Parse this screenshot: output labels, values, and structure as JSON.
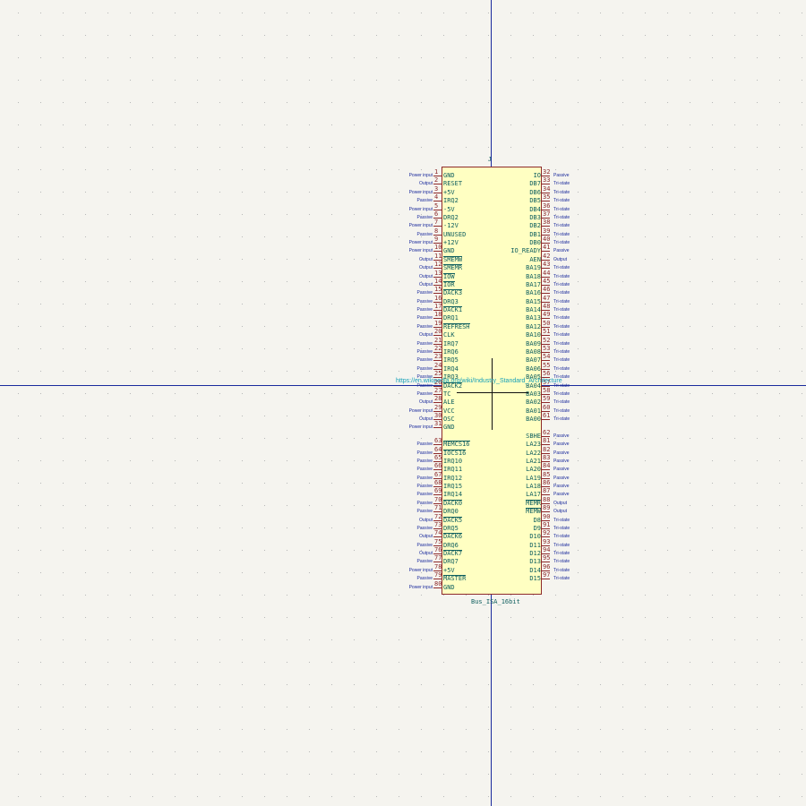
{
  "symbol": {
    "reference": "J",
    "value": "Bus_ISA_16bit",
    "datasheet": "https://en.wikipedia.org/wiki/Industry_Standard_Architecture",
    "left_pins": [
      {
        "num": "1",
        "name": "GND",
        "type": "Power input"
      },
      {
        "num": "2",
        "name": "RESET",
        "type": "Output"
      },
      {
        "num": "3",
        "name": "+5V",
        "type": "Power input"
      },
      {
        "num": "4",
        "name": "IRQ2",
        "type": "Passive"
      },
      {
        "num": "5",
        "name": "-5V",
        "type": "Power input"
      },
      {
        "num": "6",
        "name": "DRQ2",
        "type": "Passive"
      },
      {
        "num": "7",
        "name": "-12V",
        "type": "Power input"
      },
      {
        "num": "8",
        "name": "UNUSED",
        "type": "Passive"
      },
      {
        "num": "9",
        "name": "+12V",
        "type": "Power input"
      },
      {
        "num": "10",
        "name": "GND",
        "type": "Power input"
      },
      {
        "num": "11",
        "name": "SMEMW",
        "type": "Output",
        "over": true
      },
      {
        "num": "12",
        "name": "SMEMR",
        "type": "Output",
        "over": true
      },
      {
        "num": "13",
        "name": "IOW",
        "type": "Output",
        "over": true
      },
      {
        "num": "14",
        "name": "IOR",
        "type": "Output",
        "over": true
      },
      {
        "num": "15",
        "name": "DACK3",
        "type": "Passive",
        "over": true
      },
      {
        "num": "16",
        "name": "DRQ3",
        "type": "Passive"
      },
      {
        "num": "17",
        "name": "DACK1",
        "type": "Passive",
        "over": true
      },
      {
        "num": "18",
        "name": "DRQ1",
        "type": "Passive"
      },
      {
        "num": "19",
        "name": "REFRESH",
        "type": "Passive",
        "over": true
      },
      {
        "num": "20",
        "name": "CLK",
        "type": "Output"
      },
      {
        "num": "21",
        "name": "IRQ7",
        "type": "Passive"
      },
      {
        "num": "22",
        "name": "IRQ6",
        "type": "Passive"
      },
      {
        "num": "23",
        "name": "IRQ5",
        "type": "Passive"
      },
      {
        "num": "24",
        "name": "IRQ4",
        "type": "Passive"
      },
      {
        "num": "25",
        "name": "IRQ3",
        "type": "Passive"
      },
      {
        "num": "26",
        "name": "DACK2",
        "type": "Passive",
        "over": true
      },
      {
        "num": "27",
        "name": "TC",
        "type": "Passive"
      },
      {
        "num": "28",
        "name": "ALE",
        "type": "Output"
      },
      {
        "num": "29",
        "name": "VCC",
        "type": "Power input"
      },
      {
        "num": "30",
        "name": "OSC",
        "type": "Output"
      },
      {
        "num": "31",
        "name": "GND",
        "type": "Power input"
      },
      {
        "num": "63",
        "name": "MEMCS16",
        "type": "Passive",
        "over": true,
        "gap": true
      },
      {
        "num": "64",
        "name": "IOCS16",
        "type": "Passive",
        "over": true
      },
      {
        "num": "65",
        "name": "IRQ10",
        "type": "Passive"
      },
      {
        "num": "66",
        "name": "IRQ11",
        "type": "Passive"
      },
      {
        "num": "67",
        "name": "IRQ12",
        "type": "Passive"
      },
      {
        "num": "68",
        "name": "IRQ15",
        "type": "Passive"
      },
      {
        "num": "69",
        "name": "IRQ14",
        "type": "Passive"
      },
      {
        "num": "70",
        "name": "DACK0",
        "type": "Passive",
        "over": true
      },
      {
        "num": "71",
        "name": "DRQ0",
        "type": "Passive"
      },
      {
        "num": "72",
        "name": "DACK5",
        "type": "Output",
        "over": true
      },
      {
        "num": "73",
        "name": "DRQ5",
        "type": "Passive"
      },
      {
        "num": "74",
        "name": "DACK6",
        "type": "Output",
        "over": true
      },
      {
        "num": "75",
        "name": "DRQ6",
        "type": "Passive"
      },
      {
        "num": "76",
        "name": "DACK7",
        "type": "Output",
        "over": true
      },
      {
        "num": "77",
        "name": "DRQ7",
        "type": "Passive"
      },
      {
        "num": "78",
        "name": "+5V",
        "type": "Power input"
      },
      {
        "num": "79",
        "name": "MASTER",
        "type": "Passive",
        "over": true
      },
      {
        "num": "80",
        "name": "GND",
        "type": "Power input"
      }
    ],
    "right_pins": [
      {
        "num": "32",
        "name": "IO",
        "type": "Passive"
      },
      {
        "num": "33",
        "name": "DB7",
        "type": "Tri-state"
      },
      {
        "num": "34",
        "name": "DB6",
        "type": "Tri-state"
      },
      {
        "num": "35",
        "name": "DB5",
        "type": "Tri-state"
      },
      {
        "num": "36",
        "name": "DB4",
        "type": "Tri-state"
      },
      {
        "num": "37",
        "name": "DB3",
        "type": "Tri-state"
      },
      {
        "num": "38",
        "name": "DB2",
        "type": "Tri-state"
      },
      {
        "num": "39",
        "name": "DB1",
        "type": "Tri-state"
      },
      {
        "num": "40",
        "name": "DB0",
        "type": "Tri-state"
      },
      {
        "num": "41",
        "name": "IO_READY",
        "type": "Passive"
      },
      {
        "num": "42",
        "name": "AEN",
        "type": "Output"
      },
      {
        "num": "43",
        "name": "BA19",
        "type": "Tri-state"
      },
      {
        "num": "44",
        "name": "BA18",
        "type": "Tri-state"
      },
      {
        "num": "45",
        "name": "BA17",
        "type": "Tri-state"
      },
      {
        "num": "46",
        "name": "BA16",
        "type": "Tri-state"
      },
      {
        "num": "47",
        "name": "BA15",
        "type": "Tri-state"
      },
      {
        "num": "48",
        "name": "BA14",
        "type": "Tri-state"
      },
      {
        "num": "49",
        "name": "BA13",
        "type": "Tri-state"
      },
      {
        "num": "50",
        "name": "BA12",
        "type": "Tri-state"
      },
      {
        "num": "51",
        "name": "BA10",
        "type": "Tri-state"
      },
      {
        "num": "52",
        "name": "BA09",
        "type": "Tri-state"
      },
      {
        "num": "53",
        "name": "BA08",
        "type": "Tri-state"
      },
      {
        "num": "54",
        "name": "BA07",
        "type": "Tri-state"
      },
      {
        "num": "55",
        "name": "BA06",
        "type": "Tri-state"
      },
      {
        "num": "56",
        "name": "BA05",
        "type": "Tri-state"
      },
      {
        "num": "57",
        "name": "BA04",
        "type": "Tri-state"
      },
      {
        "num": "58",
        "name": "BA03",
        "type": "Tri-state"
      },
      {
        "num": "59",
        "name": "BA02",
        "type": "Tri-state"
      },
      {
        "num": "60",
        "name": "BA01",
        "type": "Tri-state"
      },
      {
        "num": "61",
        "name": "BA00",
        "type": "Tri-state"
      },
      {
        "num": "62",
        "name": "SBHE",
        "type": "Passive",
        "gap": true
      },
      {
        "num": "81",
        "name": "LA23",
        "type": "Passive"
      },
      {
        "num": "82",
        "name": "LA22",
        "type": "Passive"
      },
      {
        "num": "83",
        "name": "LA21",
        "type": "Passive"
      },
      {
        "num": "84",
        "name": "LA20",
        "type": "Passive"
      },
      {
        "num": "85",
        "name": "LA19",
        "type": "Passive"
      },
      {
        "num": "86",
        "name": "LA18",
        "type": "Passive"
      },
      {
        "num": "87",
        "name": "LA17",
        "type": "Passive"
      },
      {
        "num": "88",
        "name": "MEMR",
        "type": "Output",
        "over": true
      },
      {
        "num": "89",
        "name": "MEMW",
        "type": "Output",
        "over": true
      },
      {
        "num": "90",
        "name": "D8",
        "type": "Tri-state"
      },
      {
        "num": "91",
        "name": "D9",
        "type": "Tri-state"
      },
      {
        "num": "92",
        "name": "D10",
        "type": "Tri-state"
      },
      {
        "num": "93",
        "name": "D11",
        "type": "Tri-state"
      },
      {
        "num": "94",
        "name": "D12",
        "type": "Tri-state"
      },
      {
        "num": "95",
        "name": "D13",
        "type": "Tri-state"
      },
      {
        "num": "96",
        "name": "D14",
        "type": "Tri-state"
      },
      {
        "num": "97",
        "name": "D15",
        "type": "Tri-state"
      }
    ]
  }
}
